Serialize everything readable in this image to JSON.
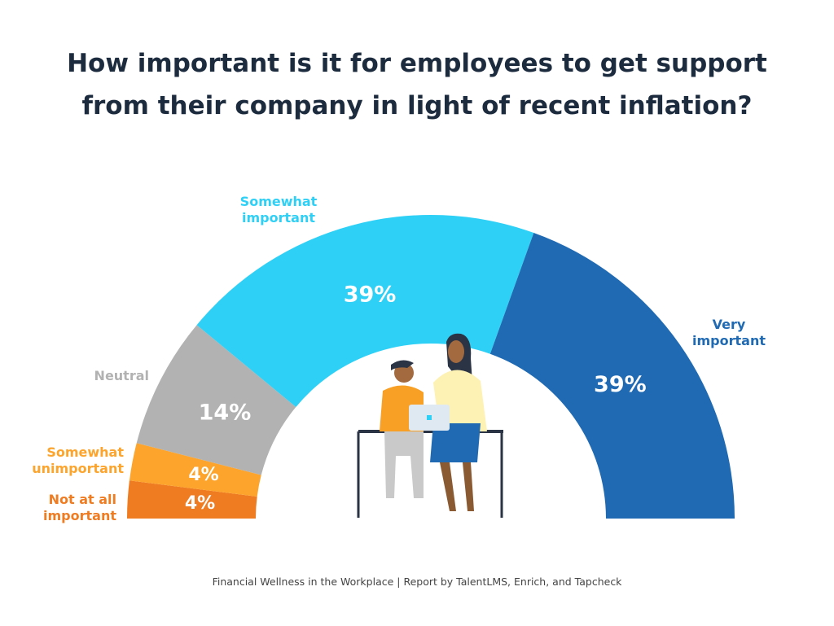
{
  "chart_data": {
    "type": "pie",
    "subtype": "half-donut",
    "title": "How important is it for employees to get support\nfrom their company in light of recent inflation?",
    "categories": [
      "Not at all\nimportant",
      "Somewhat\nunimportant",
      "Neutral",
      "Somewhat\nimportant",
      "Very\nimportant"
    ],
    "values": [
      4,
      4,
      14,
      39,
      39
    ],
    "value_labels": [
      "4%",
      "4%",
      "14%",
      "39%",
      "39%"
    ],
    "colors": [
      "#f07c22",
      "#fca42c",
      "#b2b2b2",
      "#2fd0f6",
      "#1f6ab3"
    ],
    "source": "Financial Wellness in the Workplace | Report by TalentLMS, Enrich, and Tapcheck"
  }
}
